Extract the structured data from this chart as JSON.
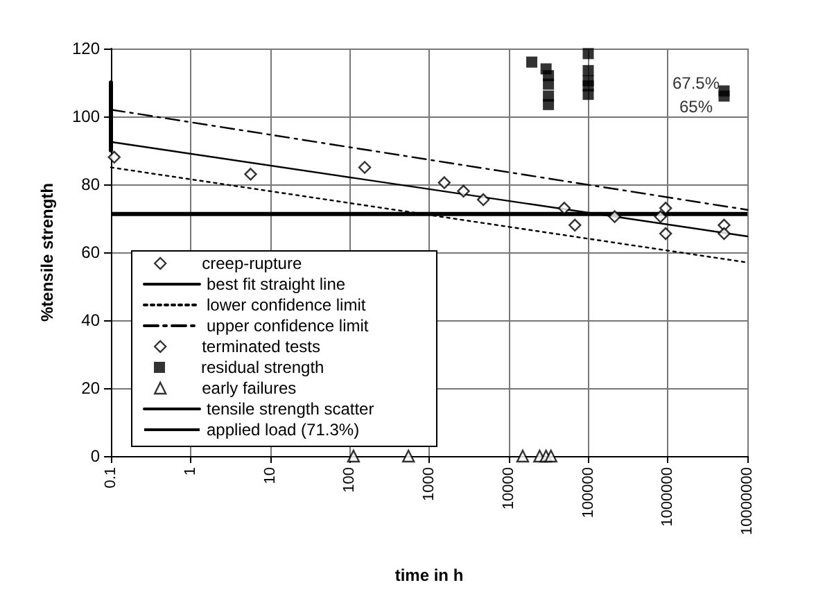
{
  "chart_data": {
    "type": "scatter",
    "xlabel": "time in h",
    "ylabel": "%tensile strength",
    "log": "x",
    "xlim": [
      0.1,
      10000000
    ],
    "xticks": [
      0.1,
      1,
      10,
      100,
      1000,
      10000,
      100000,
      1000000,
      10000000
    ],
    "ylim": [
      0,
      120
    ],
    "yticks": [
      0,
      20,
      40,
      60,
      80,
      100,
      120
    ],
    "grid": true,
    "legend": "bottom left",
    "series": [
      {
        "name": "creep-rupture",
        "marker": "diamond",
        "color": "#000000",
        "x": [
          0.11,
          5.7,
          155,
          1550,
          2700,
          4800,
          50000,
          68000,
          215000,
          810000,
          940000,
          940000
        ],
        "values": [
          88,
          83,
          85,
          80.5,
          78,
          75.5,
          73,
          68,
          70.5,
          70.5,
          73,
          65.5
        ]
      },
      {
        "name": "best fit straight line",
        "type": "line",
        "line_style": "solid",
        "color": "#000000",
        "x": [
          0.1,
          10000000
        ],
        "values": [
          92.5,
          64.7
        ]
      },
      {
        "name": "lower confidence limit",
        "type": "line",
        "line_style": "dotted",
        "color": "#000000",
        "x": [
          0.1,
          10000000
        ],
        "values": [
          85,
          57
        ]
      },
      {
        "name": "upper confidence limit",
        "type": "line",
        "line_style": "dashed",
        "color": "#000000",
        "x": [
          0.1,
          10000000
        ],
        "values": [
          102,
          72.5
        ]
      },
      {
        "name": "terminated tests",
        "marker": "diamond",
        "color": "#000000",
        "x": [
          5100000,
          5100000
        ],
        "values": [
          68,
          65.5
        ]
      },
      {
        "name": "residual strength",
        "marker": "square",
        "color": "#000000",
        "x": [
          19500,
          29500,
          31600,
          31600,
          31600,
          31600,
          100000,
          100000,
          100000,
          100000,
          100000,
          5100000,
          5100000
        ],
        "values": [
          116,
          114,
          112,
          109.5,
          106,
          103.5,
          118.5,
          113.5,
          110.5,
          109,
          106.5,
          107.5,
          106
        ]
      },
      {
        "name": "early failures",
        "marker": "triangle",
        "color": "#000000",
        "x": [
          112,
          550,
          15000,
          24500,
          29500,
          34000
        ],
        "values": [
          0,
          0,
          0,
          0,
          0,
          0
        ]
      },
      {
        "name": "tensile strength scatter",
        "type": "line",
        "line_style": "solid",
        "color": "#000000",
        "x": [
          0.1,
          0.1
        ],
        "values": [
          90,
          110
        ]
      }
    ],
    "ref_lines": [
      {
        "axis": "y",
        "value": 71.3,
        "label": "applied load (71.3%)",
        "color": "#000000"
      }
    ],
    "annotations": [
      "67.5%",
      "65%"
    ]
  }
}
